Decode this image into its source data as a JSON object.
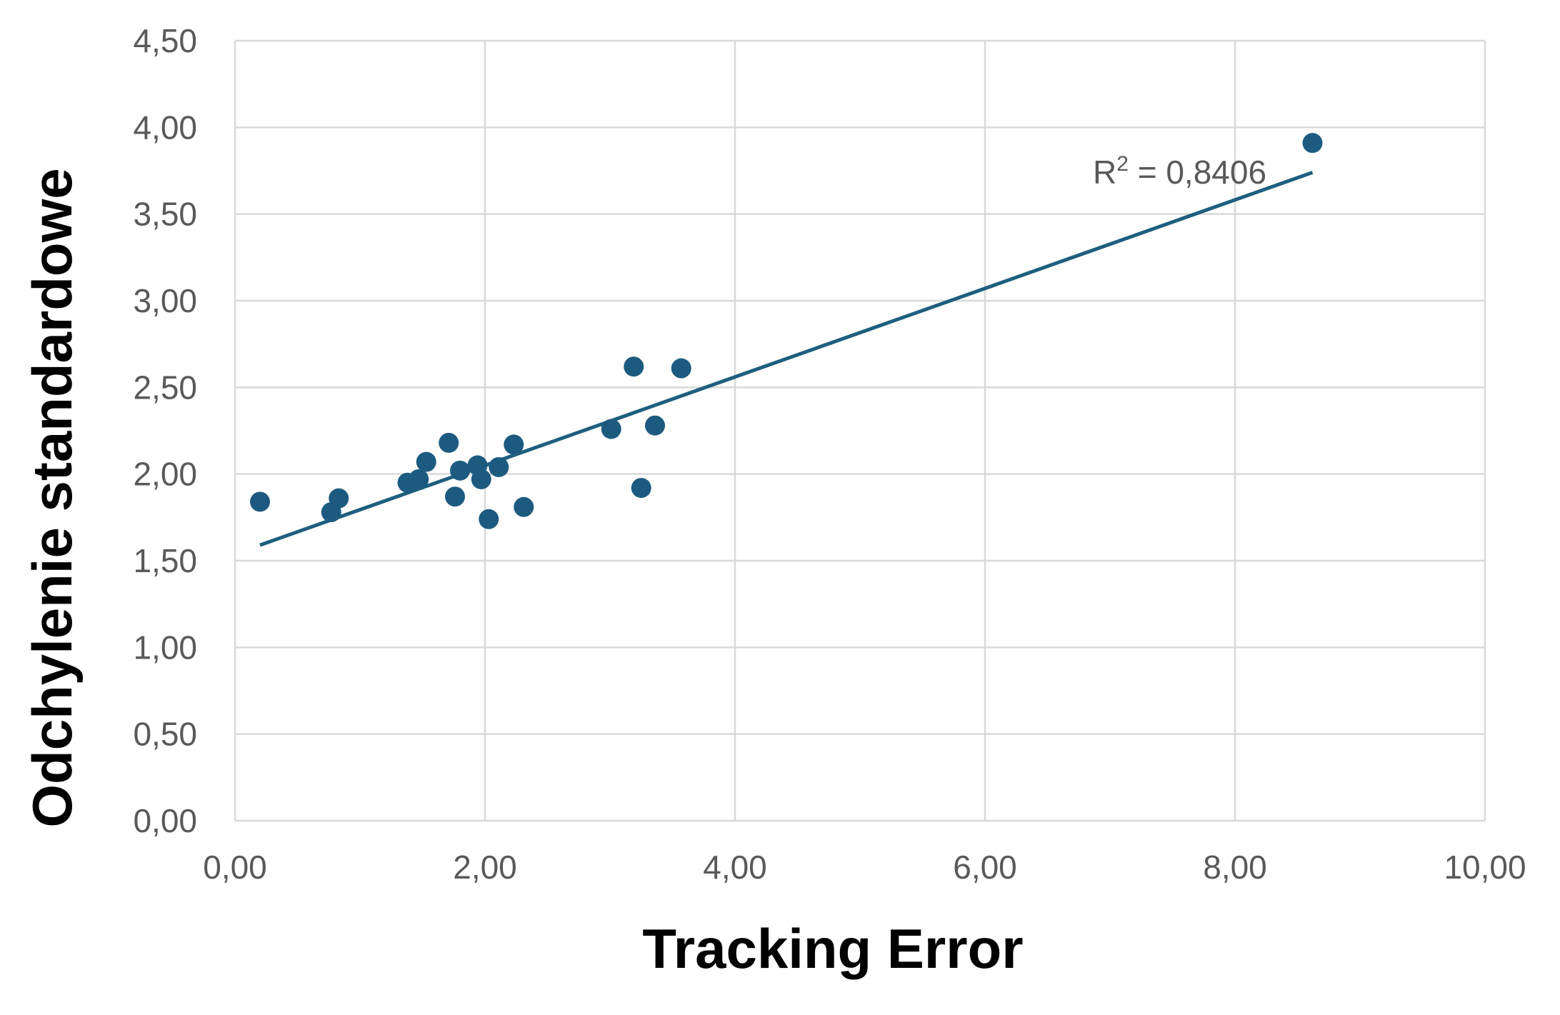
{
  "chart_data": {
    "type": "scatter",
    "xlabel": "Tracking Error",
    "ylabel": "Odchylenie standardowe",
    "xlim": [
      0,
      10
    ],
    "ylim": [
      0,
      4.5
    ],
    "x_ticks": [
      "0,00",
      "2,00",
      "4,00",
      "6,00",
      "8,00",
      "10,00"
    ],
    "y_ticks": [
      "0,00",
      "0,50",
      "1,00",
      "1,50",
      "2,00",
      "2,50",
      "3,00",
      "3,50",
      "4,00",
      "4,50"
    ],
    "grid": true,
    "points": [
      {
        "x": 0.2,
        "y": 1.84
      },
      {
        "x": 0.77,
        "y": 1.78
      },
      {
        "x": 0.83,
        "y": 1.86
      },
      {
        "x": 1.38,
        "y": 1.95
      },
      {
        "x": 1.47,
        "y": 1.97
      },
      {
        "x": 1.53,
        "y": 2.07
      },
      {
        "x": 1.71,
        "y": 2.18
      },
      {
        "x": 1.76,
        "y": 1.87
      },
      {
        "x": 1.8,
        "y": 2.02
      },
      {
        "x": 1.94,
        "y": 2.05
      },
      {
        "x": 1.97,
        "y": 1.97
      },
      {
        "x": 2.03,
        "y": 1.74
      },
      {
        "x": 2.11,
        "y": 2.04
      },
      {
        "x": 2.23,
        "y": 2.17
      },
      {
        "x": 2.31,
        "y": 1.81
      },
      {
        "x": 3.01,
        "y": 2.26
      },
      {
        "x": 3.19,
        "y": 2.62
      },
      {
        "x": 3.25,
        "y": 1.92
      },
      {
        "x": 3.36,
        "y": 2.28
      },
      {
        "x": 3.57,
        "y": 2.61
      },
      {
        "x": 8.62,
        "y": 3.91
      }
    ],
    "trendline": {
      "x": [
        0.2,
        8.62
      ],
      "y": [
        1.59,
        3.74
      ]
    },
    "r_squared_label": {
      "prefix": "R",
      "sup": "2",
      "rest": " = 0,8406"
    },
    "colors": {
      "marker": "#1c5b7f",
      "trendline": "#1e5f7e",
      "grid": "#d9d9d9"
    }
  }
}
